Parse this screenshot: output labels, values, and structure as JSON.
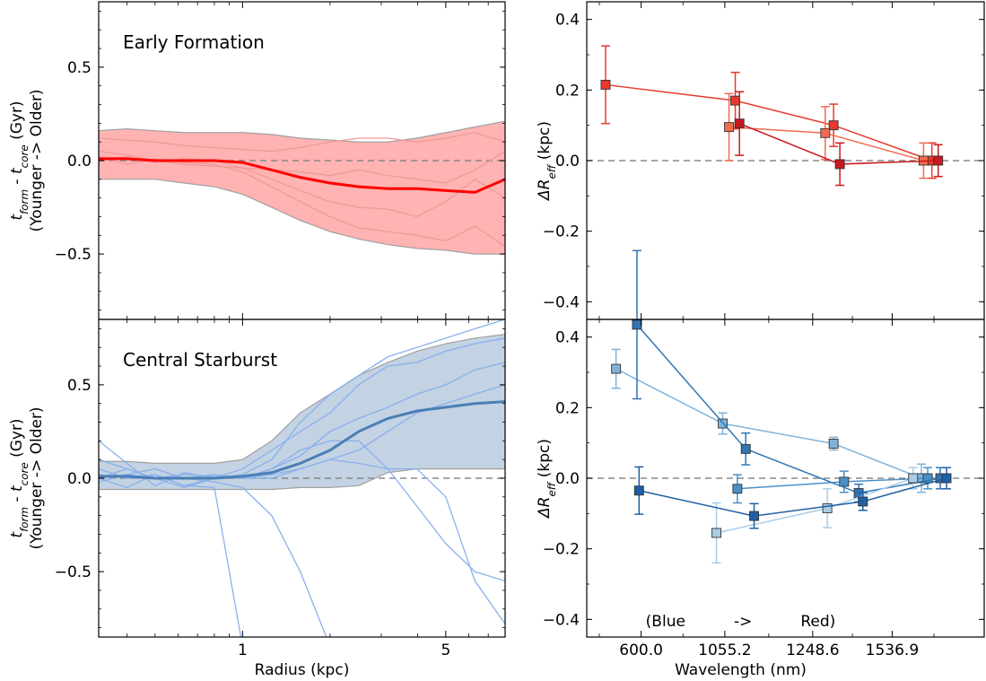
{
  "chart_data": [
    {
      "id": "early",
      "type": "line",
      "annotation": "Early Formation",
      "xscale": "log",
      "xlim": [
        0.32,
        8.0
      ],
      "ylim": [
        -0.85,
        0.85
      ],
      "xticks": [
        {
          "value": 1,
          "label": "1"
        },
        {
          "value": 5,
          "label": "5"
        }
      ],
      "yticks": [
        {
          "value": 0.5,
          "label": "0.5"
        },
        {
          "value": 0.0,
          "label": "0.0"
        },
        {
          "value": -0.5,
          "label": "−0.5"
        }
      ],
      "ylabel_lines": [
        "t_form - t_core (Gyr)",
        "(Younger -> Older)"
      ],
      "band_color": "#ffb3b3",
      "line_color": "#ef9a9a",
      "median_color": "#ff0000",
      "x": [
        0.32,
        0.4,
        0.5,
        0.63,
        0.8,
        1.0,
        1.26,
        1.58,
        2.0,
        2.51,
        3.16,
        3.98,
        5.0,
        6.3,
        8.0
      ],
      "band_upper": [
        0.16,
        0.17,
        0.16,
        0.15,
        0.15,
        0.15,
        0.14,
        0.12,
        0.11,
        0.1,
        0.1,
        0.12,
        0.15,
        0.18,
        0.21
      ],
      "band_lower": [
        -0.1,
        -0.1,
        -0.1,
        -0.12,
        -0.14,
        -0.18,
        -0.25,
        -0.32,
        -0.38,
        -0.42,
        -0.45,
        -0.47,
        -0.48,
        -0.5,
        -0.5
      ],
      "median": [
        0.01,
        0.01,
        0.0,
        0.0,
        0.0,
        -0.01,
        -0.05,
        -0.09,
        -0.12,
        -0.14,
        -0.15,
        -0.15,
        -0.16,
        -0.17,
        -0.1
      ],
      "series": [
        {
          "values": [
            0.12,
            0.11,
            0.1,
            0.08,
            0.07,
            0.06,
            0.05,
            0.07,
            0.1,
            0.12,
            0.12,
            0.1,
            0.12,
            0.15,
            0.1
          ]
        },
        {
          "values": [
            0.0,
            0.02,
            -0.01,
            0.01,
            0.0,
            -0.04,
            -0.1,
            -0.16,
            -0.22,
            -0.25,
            -0.26,
            -0.3,
            -0.22,
            -0.1,
            -0.2
          ]
        },
        {
          "values": [
            0.02,
            -0.02,
            0.01,
            -0.01,
            -0.02,
            -0.06,
            -0.14,
            -0.22,
            -0.3,
            -0.36,
            -0.38,
            -0.4,
            -0.43,
            -0.35,
            -0.46
          ]
        },
        {
          "values": [
            0.05,
            0.03,
            0.0,
            -0.02,
            -0.03,
            -0.04,
            -0.05,
            -0.06,
            -0.08,
            -0.05,
            -0.08,
            -0.1,
            -0.12,
            -0.05,
            0.05
          ]
        }
      ]
    },
    {
      "id": "starburst",
      "type": "line",
      "annotation": "Central Starburst",
      "xscale": "log",
      "xlim": [
        0.32,
        8.0
      ],
      "ylim": [
        -0.85,
        0.85
      ],
      "xticks": [
        {
          "value": 1,
          "label": "1"
        },
        {
          "value": 5,
          "label": "5"
        }
      ],
      "yticks": [
        {
          "value": 0.5,
          "label": "0.5"
        },
        {
          "value": 0.0,
          "label": "0.0"
        },
        {
          "value": -0.5,
          "label": "−0.5"
        }
      ],
      "ylabel_lines": [
        "t_form - t_core (Gyr)",
        "(Younger -> Older)"
      ],
      "xlabel": "Radius (kpc)",
      "band_color": "#c3d3e3",
      "line_color": "#8ab0ec",
      "median_color": "#4a7fb5",
      "x": [
        0.32,
        0.4,
        0.5,
        0.63,
        0.8,
        1.0,
        1.26,
        1.58,
        2.0,
        2.51,
        3.16,
        3.98,
        5.0,
        6.3,
        8.0
      ],
      "band_upper": [
        0.09,
        0.09,
        0.08,
        0.08,
        0.08,
        0.1,
        0.2,
        0.35,
        0.45,
        0.55,
        0.62,
        0.68,
        0.72,
        0.75,
        0.77
      ],
      "band_lower": [
        -0.06,
        -0.06,
        -0.06,
        -0.06,
        -0.06,
        -0.06,
        -0.06,
        -0.05,
        -0.05,
        -0.04,
        0.03,
        0.05,
        0.05,
        0.05,
        0.05
      ],
      "median": [
        0.01,
        0.01,
        0.0,
        0.0,
        0.0,
        0.01,
        0.03,
        0.08,
        0.15,
        0.25,
        0.32,
        0.36,
        0.38,
        0.4,
        0.41
      ],
      "series": [
        {
          "values": [
            0.2,
            0.08,
            -0.04,
            0.03,
            0.0,
            0.02,
            0.1,
            0.3,
            0.45,
            0.55,
            0.65,
            0.7,
            0.75,
            0.8,
            0.85
          ]
        },
        {
          "values": [
            0.1,
            0.05,
            0.0,
            -0.05,
            0.0,
            0.05,
            0.15,
            0.25,
            0.35,
            0.5,
            0.6,
            0.62,
            0.68,
            0.72,
            0.75
          ]
        },
        {
          "values": [
            -0.02,
            0.02,
            0.05,
            0.0,
            0.02,
            0.0,
            0.05,
            0.12,
            0.25,
            0.32,
            0.38,
            0.45,
            0.5,
            0.58,
            0.62
          ]
        },
        {
          "values": [
            0.0,
            -0.05,
            0.02,
            -0.04,
            0.0,
            0.0,
            0.02,
            0.05,
            0.1,
            0.15,
            0.25,
            0.35,
            0.4,
            0.45,
            0.5
          ]
        },
        {
          "values": [
            0.05,
            0.0,
            0.0,
            0.02,
            0.01,
            0.0,
            0.05,
            0.15,
            0.2,
            0.2,
            0.05,
            -0.15,
            -0.35,
            -0.5,
            -0.55
          ]
        },
        {
          "values": [
            0.0,
            0.05,
            0.0,
            0.0,
            -0.02,
            -0.05,
            -0.2,
            -0.5,
            -0.9,
            -0.9,
            -0.9,
            -0.9,
            -0.9,
            -0.9,
            -0.9
          ]
        },
        {
          "values": [
            0.0,
            0.02,
            0.0,
            0.0,
            0.0,
            0.0,
            0.0,
            0.05,
            0.1,
            0.08,
            0.05,
            0.05,
            -0.1,
            -0.55,
            -0.78
          ]
        },
        {
          "values": [
            0.02,
            0.0,
            0.02,
            -0.04,
            -0.05,
            -0.9,
            -0.9,
            -0.9,
            -0.9,
            -0.9,
            -0.9,
            -0.9,
            -0.9,
            -0.9,
            -0.9
          ]
        }
      ]
    },
    {
      "id": "red-reff",
      "type": "scatter",
      "ylim": [
        -0.45,
        0.45
      ],
      "xlim": [
        0,
        9.5
      ],
      "xticks": [
        {
          "value": 1.3,
          "label": ""
        },
        {
          "value": 3.3,
          "label": ""
        },
        {
          "value": 5.4,
          "label": ""
        },
        {
          "value": 7.3,
          "label": ""
        }
      ],
      "yticks": [
        {
          "value": 0.4,
          "label": "0.4"
        },
        {
          "value": 0.2,
          "label": "0.2"
        },
        {
          "value": 0.0,
          "label": "0.0"
        },
        {
          "value": -0.2,
          "label": "−0.2"
        },
        {
          "value": -0.4,
          "label": "−0.4"
        }
      ],
      "ylabel": "ΔR_eff (kpc)",
      "series": [
        {
          "color": "#e8392c",
          "x": [
            0.45,
            3.55,
            5.9,
            8.25
          ],
          "y": [
            0.215,
            0.17,
            0.1,
            0.0
          ],
          "err": [
            0.11,
            0.08,
            0.06,
            0.05
          ]
        },
        {
          "color": "#f26b4e",
          "x": [
            3.4,
            5.7,
            8.05
          ],
          "y": [
            0.095,
            0.078,
            0.0
          ],
          "err": [
            0.095,
            0.075,
            0.05
          ]
        },
        {
          "color": "#c8191e",
          "x": [
            3.65,
            6.05,
            8.4
          ],
          "y": [
            0.105,
            -0.01,
            0.0
          ],
          "err": [
            0.09,
            0.06,
            0.045
          ]
        }
      ]
    },
    {
      "id": "blue-reff",
      "type": "scatter",
      "ylim": [
        -0.45,
        0.45
      ],
      "xlim": [
        0,
        9.5
      ],
      "xticks": [
        {
          "value": 1.3,
          "label": "600.0"
        },
        {
          "value": 3.3,
          "label": "1055.2"
        },
        {
          "value": 5.4,
          "label": "1248.6"
        },
        {
          "value": 7.3,
          "label": "1536.9"
        }
      ],
      "yticks": [
        {
          "value": 0.4,
          "label": "0.4"
        },
        {
          "value": 0.2,
          "label": "0.2"
        },
        {
          "value": 0.0,
          "label": "0.0"
        },
        {
          "value": -0.2,
          "label": "−0.2"
        },
        {
          "value": -0.4,
          "label": "−0.4"
        }
      ],
      "ylabel": "ΔR_eff (kpc)",
      "xlabel": "Wavelength (nm)",
      "annotation": "(Blue          ->          Red)",
      "series": [
        {
          "color": "#7fb3db",
          "x": [
            0.7,
            3.25,
            5.9,
            8.0
          ],
          "y": [
            0.31,
            0.155,
            0.098,
            0.0
          ],
          "err": [
            0.055,
            0.03,
            0.018,
            0.04
          ]
        },
        {
          "color": "#4a90c8",
          "x": [
            3.6,
            6.15,
            8.15
          ],
          "y": [
            -0.03,
            -0.01,
            0.0
          ],
          "err": [
            0.04,
            0.03,
            0.03
          ]
        },
        {
          "color": "#2f75b5",
          "x": [
            1.2,
            3.8,
            6.5,
            8.45
          ],
          "y": [
            0.435,
            0.083,
            -0.042,
            0.0
          ],
          "err": [
            0.21,
            0.045,
            0.025,
            0.03
          ]
        },
        {
          "color": "#a8cde8",
          "x": [
            3.1,
            5.75,
            7.8
          ],
          "y": [
            -0.155,
            -0.085,
            0.0
          ],
          "err": [
            0.085,
            0.055,
            0.03
          ]
        },
        {
          "color": "#1f5fa5",
          "x": [
            1.25,
            4.0,
            6.6,
            8.6
          ],
          "y": [
            -0.035,
            -0.107,
            -0.066,
            0.0
          ],
          "err": [
            0.067,
            0.035,
            0.025,
            0.03
          ]
        }
      ]
    }
  ]
}
